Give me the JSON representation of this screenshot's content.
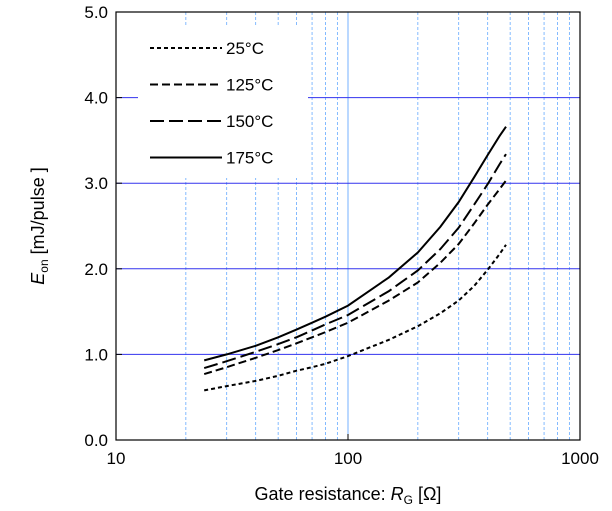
{
  "chart_data": {
    "type": "line",
    "x_scale": "log",
    "y_scale": "linear",
    "xlim": [
      10,
      1000
    ],
    "ylim": [
      0,
      5
    ],
    "x_ticks": [
      {
        "value": 10,
        "label": "10"
      },
      {
        "value": 100,
        "label": "100"
      },
      {
        "value": 1000,
        "label": "1000"
      }
    ],
    "y_ticks": [
      {
        "value": 0,
        "label": "0.0"
      },
      {
        "value": 1,
        "label": "1.0"
      },
      {
        "value": 2,
        "label": "2.0"
      },
      {
        "value": 3,
        "label": "3.0"
      },
      {
        "value": 4,
        "label": "4.0"
      },
      {
        "value": 5,
        "label": "5.0"
      }
    ],
    "xlabel": {
      "main": "Gate resistance: ",
      "var": "R",
      "sub": "G",
      "unit": " [Ω]"
    },
    "ylabel": {
      "var": "E",
      "sub": "on",
      "unit": " [mJ/pulse ]"
    },
    "grid": {
      "major_y": true,
      "minor_x": true,
      "major_x": false
    },
    "legend_placement": "top-left",
    "series": [
      {
        "name": "25°C",
        "dash": "short",
        "x": [
          24,
          30,
          40,
          50,
          60,
          70,
          80,
          100,
          150,
          200,
          250,
          300,
          350,
          400,
          450,
          480
        ],
        "y": [
          0.58,
          0.63,
          0.69,
          0.75,
          0.81,
          0.85,
          0.89,
          0.98,
          1.17,
          1.33,
          1.48,
          1.63,
          1.8,
          1.99,
          2.17,
          2.28
        ]
      },
      {
        "name": "125°C",
        "dash": "medium",
        "x": [
          24,
          30,
          40,
          50,
          60,
          70,
          80,
          100,
          150,
          200,
          250,
          300,
          350,
          400,
          450,
          480
        ],
        "y": [
          0.77,
          0.85,
          0.96,
          1.05,
          1.13,
          1.2,
          1.26,
          1.37,
          1.63,
          1.84,
          2.07,
          2.29,
          2.53,
          2.75,
          2.93,
          3.03
        ]
      },
      {
        "name": "150°C",
        "dash": "long",
        "x": [
          24,
          30,
          40,
          50,
          60,
          70,
          80,
          100,
          150,
          200,
          250,
          300,
          350,
          400,
          450,
          480
        ],
        "y": [
          0.84,
          0.92,
          1.03,
          1.12,
          1.2,
          1.28,
          1.35,
          1.46,
          1.74,
          1.98,
          2.23,
          2.48,
          2.75,
          2.99,
          3.22,
          3.34
        ]
      },
      {
        "name": "175°C",
        "dash": "solid",
        "x": [
          24,
          30,
          40,
          50,
          60,
          70,
          80,
          100,
          150,
          200,
          250,
          300,
          350,
          400,
          450,
          480
        ],
        "y": [
          0.93,
          1.0,
          1.1,
          1.2,
          1.29,
          1.37,
          1.44,
          1.57,
          1.9,
          2.19,
          2.49,
          2.78,
          3.07,
          3.33,
          3.55,
          3.66
        ]
      }
    ]
  },
  "colors": {
    "grid": "#3333ee",
    "minor_grid": "#66aaff",
    "axis": "#000000",
    "line": "#000000"
  }
}
